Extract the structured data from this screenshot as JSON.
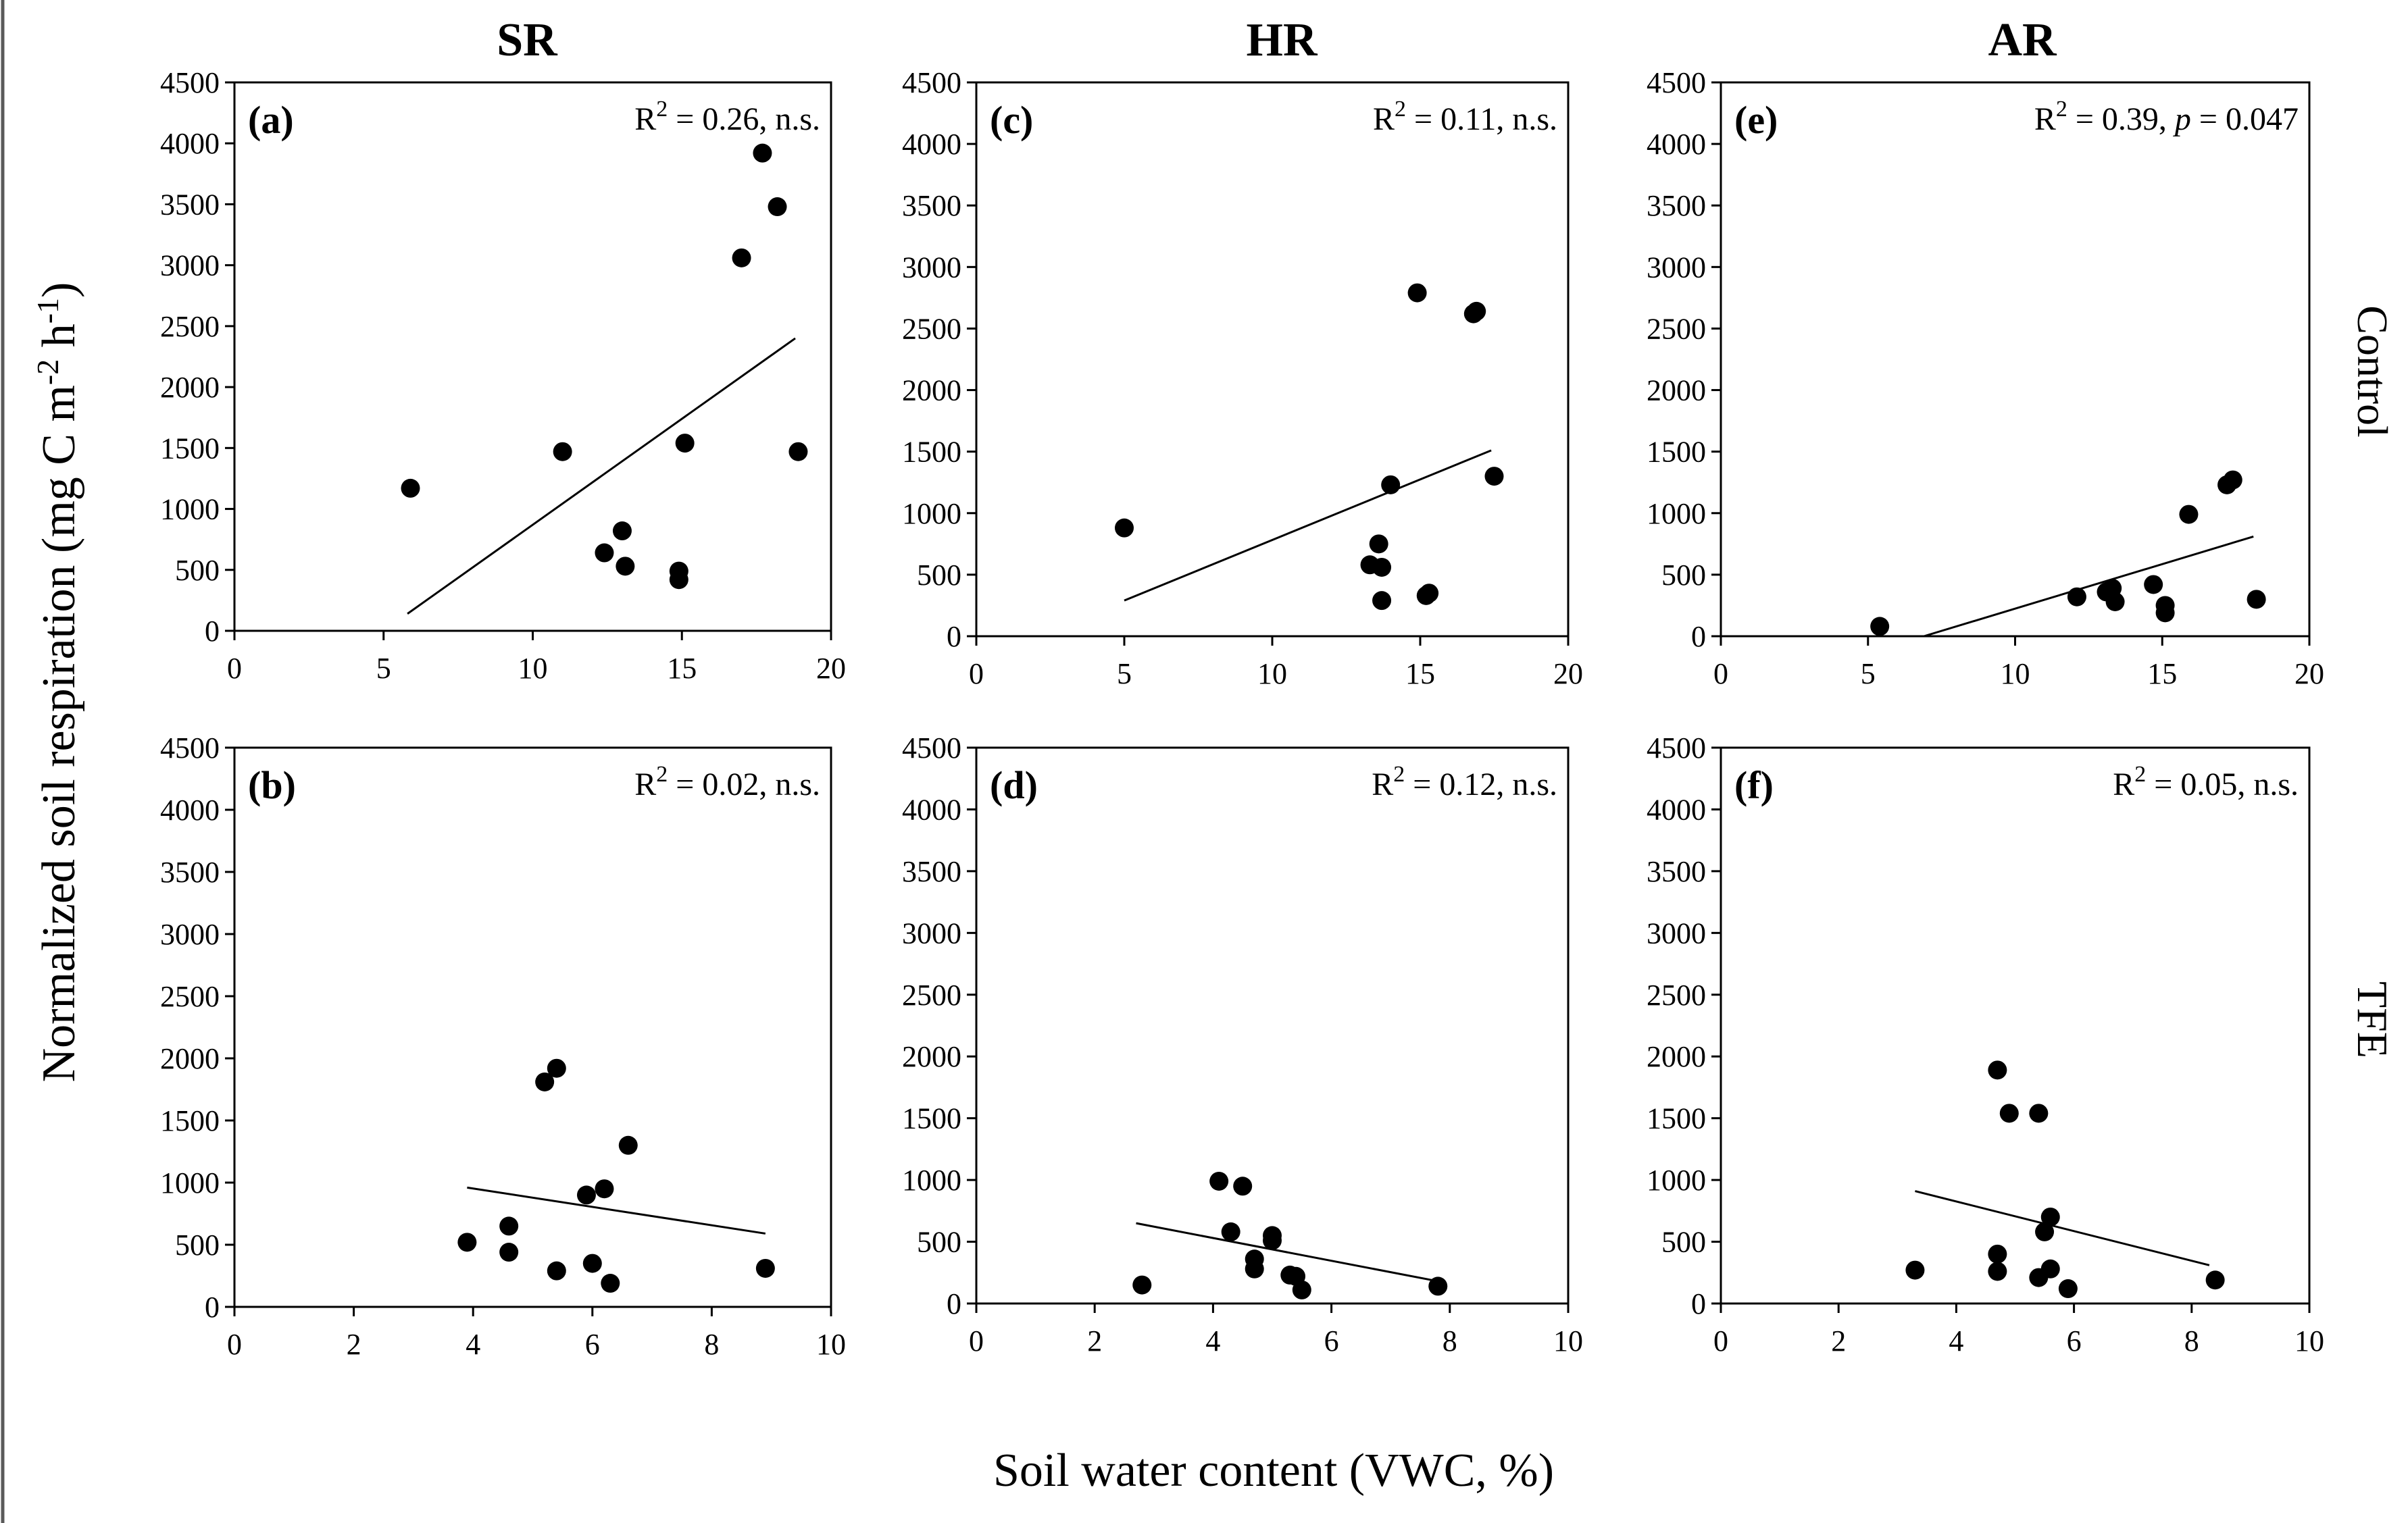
{
  "figure": {
    "column_titles": [
      "SR",
      "HR",
      "AR"
    ],
    "row_labels": [
      "Control",
      "TFE"
    ],
    "ylabel_text": "Normalized soil respiration (mg C m",
    "ylabel_sup1": "-2",
    "ylabel_mid": " h",
    "ylabel_sup2": "-1",
    "ylabel_end": ")",
    "xlabel": "Soil water content (VWC, %)"
  },
  "chart_data": [
    {
      "type": "scatter",
      "panel": "(a)",
      "row": "Control",
      "column": "SR",
      "stat_text": {
        "pre": "R",
        "sup": "2",
        "mid": " = 0.26, n.s.",
        "italic": "",
        "post": ""
      },
      "xlim": [
        0,
        20
      ],
      "ylim": [
        0,
        4500
      ],
      "xticks": [
        0,
        5,
        10,
        15,
        20
      ],
      "yticks": [
        0,
        500,
        1000,
        1500,
        2000,
        2500,
        3000,
        3500,
        4000,
        4500
      ],
      "points": [
        [
          5.9,
          1170
        ],
        [
          11.0,
          1470
        ],
        [
          12.4,
          640
        ],
        [
          13.0,
          820
        ],
        [
          13.1,
          530
        ],
        [
          14.9,
          490
        ],
        [
          14.9,
          420
        ],
        [
          15.1,
          1540
        ],
        [
          17.0,
          3060
        ],
        [
          17.7,
          3920
        ],
        [
          18.2,
          3480
        ],
        [
          18.9,
          1470
        ]
      ],
      "fit": [
        [
          5.8,
          140
        ],
        [
          18.8,
          2400
        ]
      ]
    },
    {
      "type": "scatter",
      "panel": "(b)",
      "row": "TFE",
      "column": "SR",
      "stat_text": {
        "pre": "R",
        "sup": "2",
        "mid": " = 0.02, n.s.",
        "italic": "",
        "post": ""
      },
      "xlim": [
        0,
        10
      ],
      "ylim": [
        0,
        4500
      ],
      "xticks": [
        0,
        2,
        4,
        6,
        8,
        10
      ],
      "yticks": [
        0,
        500,
        1000,
        1500,
        2000,
        2500,
        3000,
        3500,
        4000,
        4500
      ],
      "points": [
        [
          3.9,
          520
        ],
        [
          4.6,
          650
        ],
        [
          4.6,
          440
        ],
        [
          5.2,
          1810
        ],
        [
          5.4,
          1920
        ],
        [
          5.4,
          290
        ],
        [
          5.9,
          900
        ],
        [
          6.0,
          350
        ],
        [
          6.2,
          950
        ],
        [
          6.3,
          190
        ],
        [
          6.6,
          1300
        ],
        [
          8.9,
          310
        ]
      ],
      "fit": [
        [
          3.9,
          960
        ],
        [
          8.9,
          590
        ]
      ]
    },
    {
      "type": "scatter",
      "panel": "(c)",
      "row": "Control",
      "column": "HR",
      "stat_text": {
        "pre": "R",
        "sup": "2",
        "mid": " = 0.11, n.s.",
        "italic": "",
        "post": ""
      },
      "xlim": [
        0,
        20
      ],
      "ylim": [
        0,
        4500
      ],
      "xticks": [
        0,
        5,
        10,
        15,
        20
      ],
      "yticks": [
        0,
        500,
        1000,
        1500,
        2000,
        2500,
        3000,
        3500,
        4000,
        4500
      ],
      "points": [
        [
          5.0,
          880
        ],
        [
          13.3,
          580
        ],
        [
          13.6,
          750
        ],
        [
          13.7,
          560
        ],
        [
          13.7,
          290
        ],
        [
          14.0,
          1230
        ],
        [
          14.9,
          2790
        ],
        [
          15.2,
          330
        ],
        [
          15.3,
          350
        ],
        [
          16.8,
          2620
        ],
        [
          16.9,
          2640
        ],
        [
          17.5,
          1300
        ]
      ],
      "fit": [
        [
          5.0,
          290
        ],
        [
          17.4,
          1510
        ]
      ]
    },
    {
      "type": "scatter",
      "panel": "(d)",
      "row": "TFE",
      "column": "HR",
      "stat_text": {
        "pre": "R",
        "sup": "2",
        "mid": " = 0.12, n.s.",
        "italic": "",
        "post": ""
      },
      "xlim": [
        0,
        10
      ],
      "ylim": [
        0,
        4500
      ],
      "xticks": [
        0,
        2,
        4,
        6,
        8,
        10
      ],
      "yticks": [
        0,
        500,
        1000,
        1500,
        2000,
        2500,
        3000,
        3500,
        4000,
        4500
      ],
      "points": [
        [
          2.8,
          150
        ],
        [
          4.1,
          990
        ],
        [
          4.3,
          580
        ],
        [
          4.5,
          950
        ],
        [
          4.7,
          360
        ],
        [
          4.7,
          280
        ],
        [
          5.0,
          510
        ],
        [
          5.0,
          550
        ],
        [
          5.3,
          230
        ],
        [
          5.4,
          220
        ],
        [
          5.5,
          110
        ],
        [
          7.8,
          140
        ]
      ],
      "fit": [
        [
          2.7,
          650
        ],
        [
          7.8,
          180
        ]
      ]
    },
    {
      "type": "scatter",
      "panel": "(e)",
      "row": "Control",
      "column": "AR",
      "stat_text": {
        "pre": "R",
        "sup": "2",
        "mid": " = 0.39, ",
        "italic": "p",
        "post": " = 0.047"
      },
      "xlim": [
        0,
        20
      ],
      "ylim": [
        0,
        4500
      ],
      "xticks": [
        0,
        5,
        10,
        15,
        20
      ],
      "yticks": [
        0,
        500,
        1000,
        1500,
        2000,
        2500,
        3000,
        3500,
        4000,
        4500
      ],
      "points": [
        [
          5.4,
          80
        ],
        [
          12.1,
          320
        ],
        [
          13.1,
          360
        ],
        [
          13.3,
          390
        ],
        [
          13.4,
          280
        ],
        [
          14.7,
          420
        ],
        [
          15.1,
          250
        ],
        [
          15.1,
          190
        ],
        [
          15.9,
          990
        ],
        [
          17.2,
          1230
        ],
        [
          17.4,
          1270
        ],
        [
          18.2,
          300
        ]
      ],
      "fit": [
        [
          6.9,
          0
        ],
        [
          18.1,
          810
        ]
      ]
    },
    {
      "type": "scatter",
      "panel": "(f)",
      "row": "TFE",
      "column": "AR",
      "stat_text": {
        "pre": "R",
        "sup": "2",
        "mid": " = 0.05, n.s.",
        "italic": "",
        "post": ""
      },
      "xlim": [
        0,
        10
      ],
      "ylim": [
        0,
        4500
      ],
      "xticks": [
        0,
        2,
        4,
        6,
        8,
        10
      ],
      "yticks": [
        0,
        500,
        1000,
        1500,
        2000,
        2500,
        3000,
        3500,
        4000,
        4500
      ],
      "points": [
        [
          3.3,
          270
        ],
        [
          4.7,
          1890
        ],
        [
          4.7,
          400
        ],
        [
          4.7,
          260
        ],
        [
          4.9,
          1540
        ],
        [
          5.4,
          1540
        ],
        [
          5.4,
          210
        ],
        [
          5.5,
          580
        ],
        [
          5.6,
          700
        ],
        [
          5.6,
          280
        ],
        [
          5.9,
          120
        ],
        [
          8.4,
          190
        ]
      ],
      "fit": [
        [
          3.3,
          910
        ],
        [
          8.3,
          310
        ]
      ]
    }
  ]
}
